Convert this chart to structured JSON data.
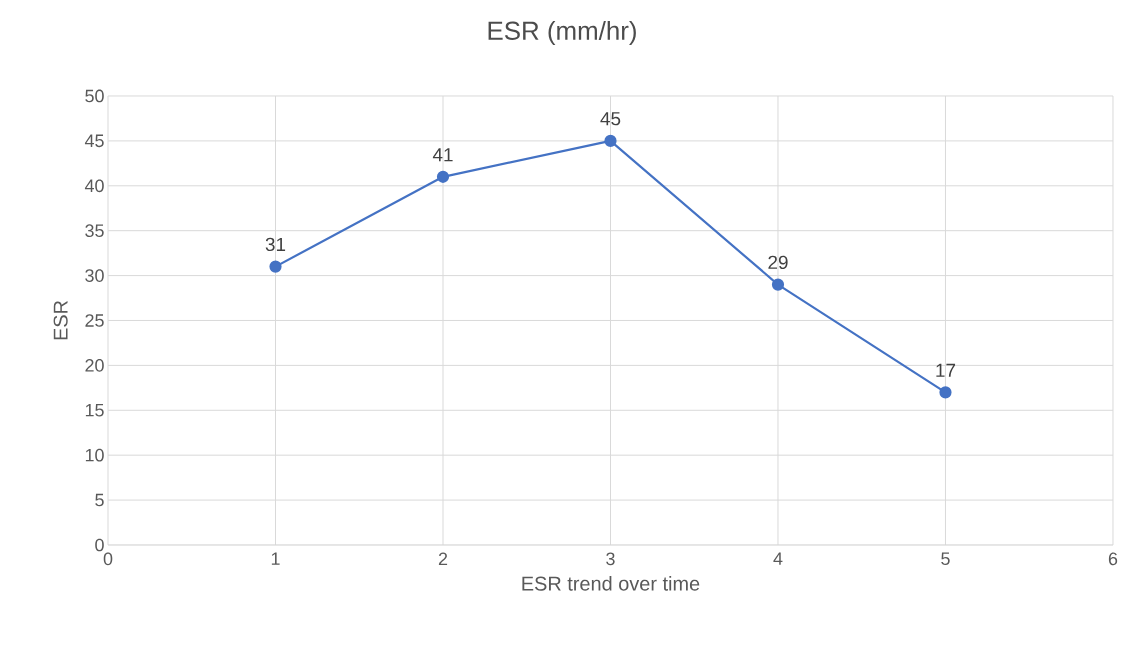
{
  "chart_data": {
    "type": "line",
    "title": "ESR (mm/hr)",
    "xlabel": "ESR trend over time",
    "ylabel": "ESR",
    "x": [
      1,
      2,
      3,
      4,
      5
    ],
    "series": [
      {
        "color": "#4472c4",
        "values": [
          31,
          41,
          45,
          29,
          17
        ]
      }
    ],
    "xlim": [
      0,
      6
    ],
    "xticks": [
      0,
      1,
      2,
      3,
      4,
      5,
      6
    ],
    "ylim": [
      0,
      50
    ],
    "yticks": [
      0,
      5,
      10,
      15,
      20,
      25,
      30,
      35,
      40,
      45,
      50
    ],
    "grid": true,
    "marker": "circle",
    "line_style": "solid",
    "data_labels": true
  }
}
